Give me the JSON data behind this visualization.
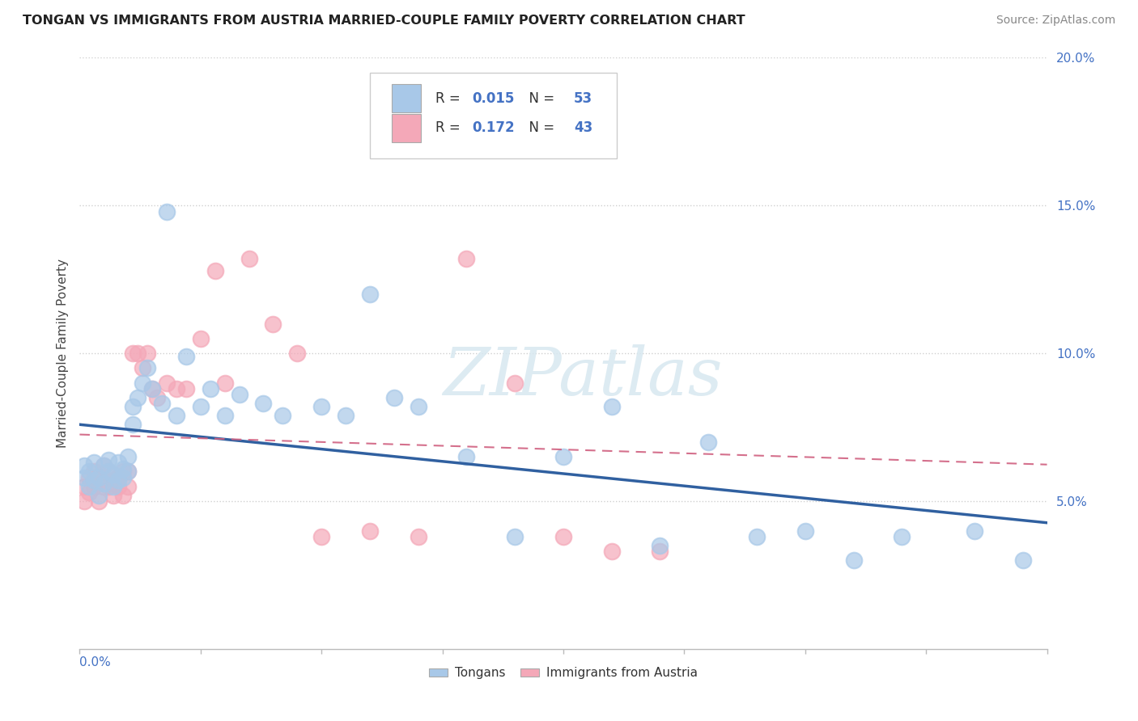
{
  "title": "TONGAN VS IMMIGRANTS FROM AUSTRIA MARRIED-COUPLE FAMILY POVERTY CORRELATION CHART",
  "source": "Source: ZipAtlas.com",
  "ylabel": "Married-Couple Family Poverty",
  "xlim": [
    0.0,
    0.2
  ],
  "ylim": [
    0.0,
    0.2
  ],
  "xticks": [
    0.0,
    0.025,
    0.05,
    0.075,
    0.1,
    0.125,
    0.15,
    0.175,
    0.2
  ],
  "yticks": [
    0.05,
    0.1,
    0.15,
    0.2
  ],
  "blue_R": "0.015",
  "blue_N": "53",
  "pink_R": "0.172",
  "pink_N": "43",
  "blue_color": "#a8c8e8",
  "pink_color": "#f4a8b8",
  "blue_line_color": "#3060a0",
  "pink_line_color": "#d06080",
  "blue_text_color": "#4472c4",
  "pink_text_color": "#4472c4",
  "grid_color": "#d0d0d0",
  "background_color": "#ffffff",
  "tongan_x": [
    0.001,
    0.001,
    0.002,
    0.002,
    0.003,
    0.003,
    0.004,
    0.004,
    0.005,
    0.005,
    0.006,
    0.006,
    0.007,
    0.007,
    0.008,
    0.008,
    0.009,
    0.009,
    0.01,
    0.01,
    0.011,
    0.011,
    0.012,
    0.013,
    0.014,
    0.015,
    0.017,
    0.018,
    0.02,
    0.022,
    0.025,
    0.027,
    0.03,
    0.033,
    0.038,
    0.042,
    0.05,
    0.055,
    0.06,
    0.065,
    0.07,
    0.08,
    0.09,
    0.1,
    0.11,
    0.12,
    0.13,
    0.14,
    0.15,
    0.16,
    0.17,
    0.185,
    0.195
  ],
  "tongan_y": [
    0.062,
    0.058,
    0.06,
    0.055,
    0.063,
    0.057,
    0.058,
    0.052,
    0.062,
    0.056,
    0.064,
    0.06,
    0.059,
    0.055,
    0.063,
    0.057,
    0.061,
    0.058,
    0.065,
    0.06,
    0.082,
    0.076,
    0.085,
    0.09,
    0.095,
    0.088,
    0.083,
    0.148,
    0.079,
    0.099,
    0.082,
    0.088,
    0.079,
    0.086,
    0.083,
    0.079,
    0.082,
    0.079,
    0.12,
    0.085,
    0.082,
    0.065,
    0.038,
    0.065,
    0.082,
    0.035,
    0.07,
    0.038,
    0.04,
    0.03,
    0.038,
    0.04,
    0.03
  ],
  "austria_x": [
    0.001,
    0.001,
    0.002,
    0.002,
    0.003,
    0.003,
    0.004,
    0.004,
    0.005,
    0.005,
    0.006,
    0.006,
    0.007,
    0.007,
    0.008,
    0.008,
    0.009,
    0.009,
    0.01,
    0.01,
    0.011,
    0.012,
    0.013,
    0.014,
    0.015,
    0.016,
    0.018,
    0.02,
    0.022,
    0.025,
    0.028,
    0.03,
    0.035,
    0.04,
    0.045,
    0.05,
    0.06,
    0.07,
    0.08,
    0.09,
    0.1,
    0.11,
    0.12
  ],
  "austria_y": [
    0.055,
    0.05,
    0.058,
    0.053,
    0.06,
    0.055,
    0.058,
    0.05,
    0.055,
    0.062,
    0.06,
    0.055,
    0.057,
    0.052,
    0.058,
    0.055,
    0.052,
    0.06,
    0.06,
    0.055,
    0.1,
    0.1,
    0.095,
    0.1,
    0.088,
    0.085,
    0.09,
    0.088,
    0.088,
    0.105,
    0.128,
    0.09,
    0.132,
    0.11,
    0.1,
    0.038,
    0.04,
    0.038,
    0.132,
    0.09,
    0.038,
    0.033,
    0.033
  ]
}
